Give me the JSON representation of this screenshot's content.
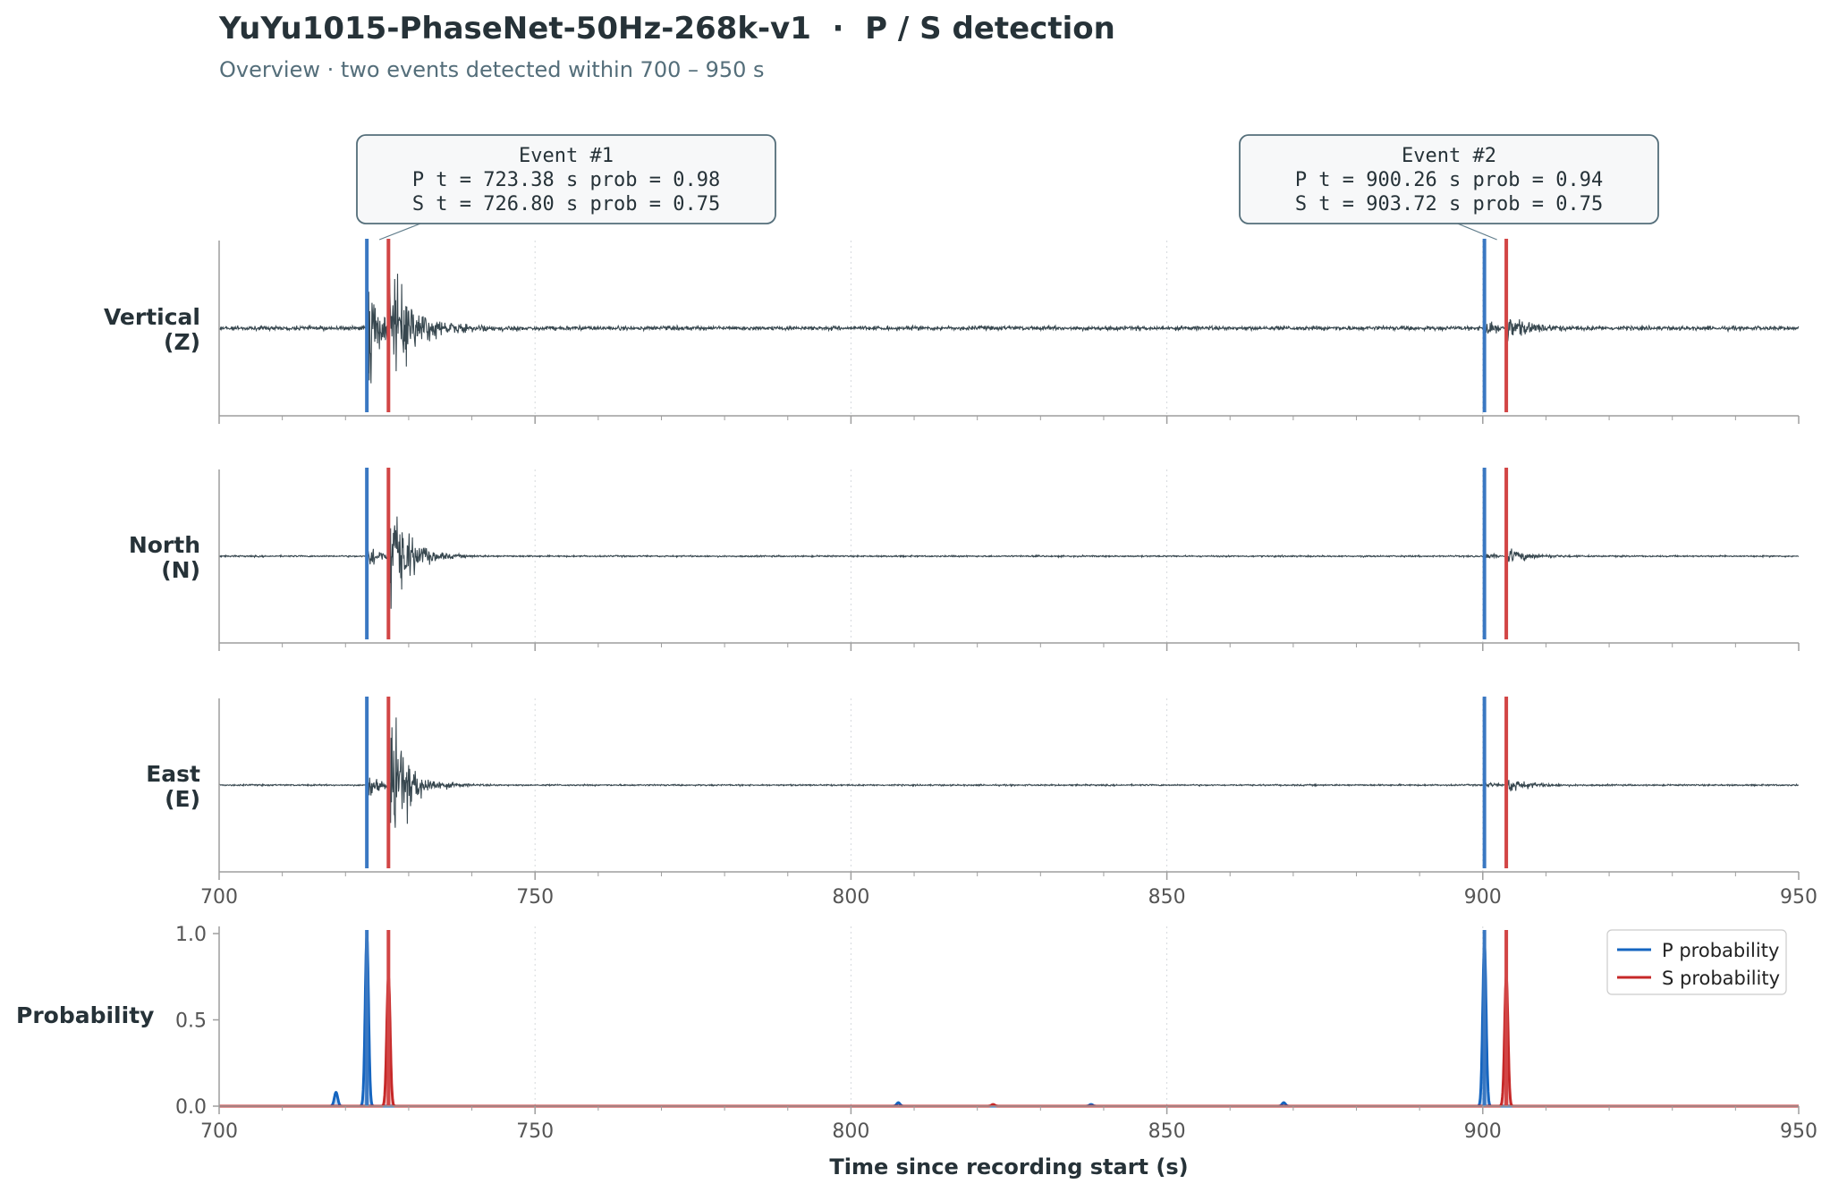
{
  "chart_data": {
    "type": "line",
    "title": "YuYu1015-PhaseNet-50Hz-268k-v1  ·  P / S detection",
    "subtitle": "Overview · two events detected within 700 – 950 s",
    "xlabel": "Time since recording start (s)",
    "xlim": [
      700,
      950
    ],
    "x_ticks": [
      700,
      750,
      800,
      850,
      900,
      950
    ],
    "grid": true,
    "colors": {
      "waveform": "#37474f",
      "p": "#1565c0",
      "s": "#c62828",
      "p_pick": "#3a78c2",
      "s_pick": "#d24545",
      "text": "#263238",
      "subtitle": "#546e7a"
    },
    "channels": [
      {
        "label_line1": "Vertical",
        "label_line2": "(Z)"
      },
      {
        "label_line1": "North",
        "label_line2": "(N)"
      },
      {
        "label_line1": "East",
        "label_line2": "(E)"
      }
    ],
    "events": [
      {
        "title": "Event #1",
        "p_line": "P   t =  723.38 s   prob = 0.98",
        "s_line": "S   t =  726.80 s   prob = 0.75",
        "p_time": 723.38,
        "p_prob": 0.98,
        "s_time": 726.8,
        "s_prob": 0.75
      },
      {
        "title": "Event #2",
        "p_line": "P   t =  900.26 s   prob = 0.94",
        "s_line": "S   t =  903.72 s   prob = 0.75",
        "p_time": 900.26,
        "p_prob": 0.94,
        "s_time": 903.72,
        "s_prob": 0.75
      }
    ],
    "probability_panel": {
      "ylabel": "Probability",
      "ylim": [
        0,
        1.0
      ],
      "y_ticks": [
        "0.0",
        "0.5",
        "1.0"
      ],
      "legend_position": "top-right",
      "series": [
        {
          "name": "P probability",
          "color": "#1565c0",
          "peaks": [
            {
              "x": 723.38,
              "y": 0.98
            },
            {
              "x": 900.26,
              "y": 0.94
            },
            {
              "x": 718.5,
              "y": 0.08
            },
            {
              "x": 807.5,
              "y": 0.02
            },
            {
              "x": 838.0,
              "y": 0.01
            },
            {
              "x": 868.5,
              "y": 0.02
            }
          ]
        },
        {
          "name": "S probability",
          "color": "#c62828",
          "peaks": [
            {
              "x": 726.8,
              "y": 0.75
            },
            {
              "x": 903.72,
              "y": 0.75
            },
            {
              "x": 822.5,
              "y": 0.01
            }
          ]
        }
      ]
    }
  }
}
